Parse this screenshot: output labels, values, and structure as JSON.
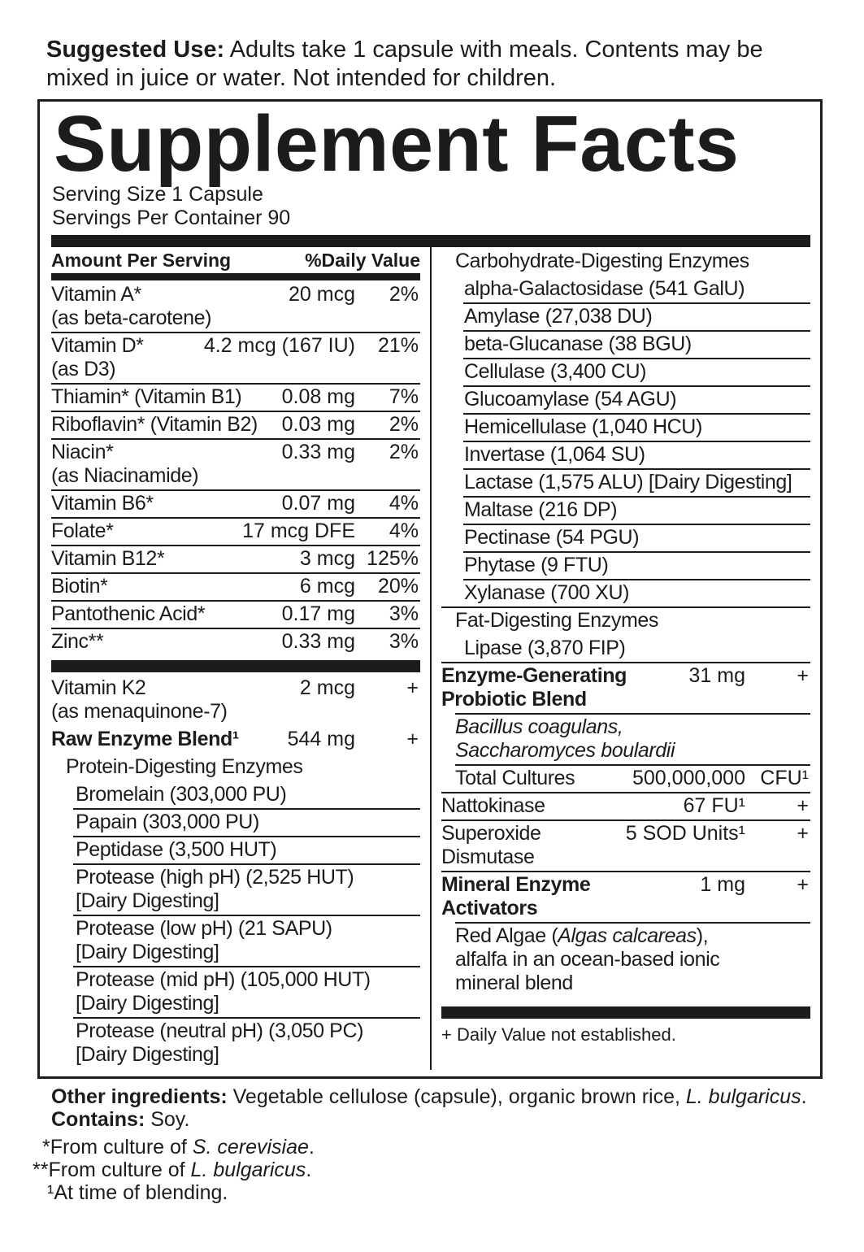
{
  "suggested_use": {
    "label": "Suggested Use:",
    "text": " Adults take 1 capsule with meals. Contents may be mixed in juice or water. Not intended for children."
  },
  "title": "Supplement Facts",
  "serving_size": "Serving Size 1 Capsule",
  "servings_per_container": "Servings Per Container 90",
  "header": {
    "amount": "Amount Per Serving",
    "dv": "%Daily Value"
  },
  "left_vitamins": [
    {
      "name": [
        "Vitamin A*",
        "(as beta-carotene)"
      ],
      "amount": "20 mcg",
      "dv": "2%",
      "line": "full"
    },
    {
      "name": [
        "Vitamin D*",
        "(as D3)"
      ],
      "amount": "4.2 mcg (167 IU)",
      "dv": "21%",
      "line": "full"
    },
    {
      "name": [
        "Thiamin* (Vitamin B1)"
      ],
      "amount": "0.08 mg",
      "dv": "7%",
      "line": "full"
    },
    {
      "name": [
        "Riboflavin* (Vitamin B2)"
      ],
      "amount": "0.03 mg",
      "dv": "2%",
      "line": "full"
    },
    {
      "name": [
        "Niacin*",
        "(as Niacinamide)"
      ],
      "amount": "0.33 mg",
      "dv": "2%",
      "line": "full"
    },
    {
      "name": [
        "Vitamin B6*"
      ],
      "amount": "0.07 mg",
      "dv": "4%",
      "line": "full"
    },
    {
      "name": [
        "Folate*"
      ],
      "amount": "17 mcg DFE",
      "dv": "4%",
      "line": "full"
    },
    {
      "name": [
        "Vitamin B12*"
      ],
      "amount": "3 mcg",
      "dv": "125%",
      "line": "full"
    },
    {
      "name": [
        "Biotin*"
      ],
      "amount": "6 mcg",
      "dv": "20%",
      "line": "full"
    },
    {
      "name": [
        "Pantothenic Acid*"
      ],
      "amount": "0.17 mg",
      "dv": "3%",
      "line": "full"
    },
    {
      "name": [
        "Zinc**"
      ],
      "amount": "0.33 mg",
      "dv": "3%",
      "line": "none"
    }
  ],
  "left_blends": [
    {
      "name": [
        "Vitamin K2",
        "(as menaquinone-7)"
      ],
      "amount": "2 mcg",
      "dv": "+",
      "line": "none"
    },
    {
      "name": [
        "Raw Enzyme Blend¹"
      ],
      "amount": "544 mg",
      "dv": "+",
      "line": "none",
      "bold": true
    },
    {
      "name": [
        "Protein-Digesting Enzymes"
      ],
      "indent": 18,
      "line": "none"
    },
    {
      "name": [
        "Bromelain (303,000 PU)"
      ],
      "indent": 30,
      "line": "ind",
      "lineIndent": 27
    },
    {
      "name": [
        "Papain (303,000 PU)"
      ],
      "indent": 30,
      "line": "ind",
      "lineIndent": 27
    },
    {
      "name": [
        "Peptidase (3,500 HUT)"
      ],
      "indent": 30,
      "line": "ind",
      "lineIndent": 27
    },
    {
      "name": [
        "Protease (high pH) (2,525 HUT)",
        "[Dairy Digesting]"
      ],
      "indent": 30,
      "line": "ind",
      "lineIndent": 27
    },
    {
      "name": [
        "Protease (low pH) (21 SAPU)",
        "[Dairy Digesting]"
      ],
      "indent": 30,
      "line": "ind",
      "lineIndent": 27
    },
    {
      "name": [
        "Protease (mid pH) (105,000 HUT)",
        "[Dairy Digesting]"
      ],
      "indent": 30,
      "line": "ind",
      "lineIndent": 27
    },
    {
      "name": [
        "Protease (neutral pH) (3,050 PC)",
        "[Dairy Digesting]"
      ],
      "indent": 30,
      "line": "none"
    }
  ],
  "right_rows": [
    {
      "name": [
        "Carbohydrate-Digesting Enzymes"
      ],
      "indent": 17,
      "line": "none"
    },
    {
      "name": [
        "alpha-Galactosidase (541 GalU)"
      ],
      "indent": 28,
      "line": "ind",
      "lineIndent": 27
    },
    {
      "name": [
        "Amylase (27,038 DU)"
      ],
      "indent": 28,
      "line": "ind",
      "lineIndent": 27
    },
    {
      "name": [
        "beta-Glucanase (38 BGU)"
      ],
      "indent": 28,
      "line": "ind",
      "lineIndent": 27
    },
    {
      "name": [
        "Cellulase (3,400 CU)"
      ],
      "indent": 28,
      "line": "ind",
      "lineIndent": 27
    },
    {
      "name": [
        "Glucoamylase (54 AGU)"
      ],
      "indent": 28,
      "line": "ind",
      "lineIndent": 27
    },
    {
      "name": [
        "Hemicellulase (1,040 HCU)"
      ],
      "indent": 28,
      "line": "ind",
      "lineIndent": 27
    },
    {
      "name": [
        "Invertase (1,064 SU)"
      ],
      "indent": 28,
      "line": "ind",
      "lineIndent": 27
    },
    {
      "name": [
        "Lactase (1,575 ALU) [Dairy Digesting]"
      ],
      "indent": 28,
      "line": "ind",
      "lineIndent": 27
    },
    {
      "name": [
        "Maltase (216 DP)"
      ],
      "indent": 28,
      "line": "ind",
      "lineIndent": 27
    },
    {
      "name": [
        "Pectinase (54 PGU)"
      ],
      "indent": 28,
      "line": "ind",
      "lineIndent": 27
    },
    {
      "name": [
        "Phytase (9 FTU)"
      ],
      "indent": 28,
      "line": "ind",
      "lineIndent": 27
    },
    {
      "name": [
        "Xylanase (700 XU)"
      ],
      "indent": 28,
      "line": "full"
    },
    {
      "name": [
        "Fat-Digesting Enzymes"
      ],
      "indent": 17,
      "line": "none"
    },
    {
      "name": [
        "Lipase (3,870 FIP)"
      ],
      "indent": 28,
      "line": "full"
    },
    {
      "name": [
        "Enzyme-Generating",
        "Probiotic Blend"
      ],
      "amount": "31 mg",
      "dv": "+",
      "bold": true,
      "line": "ind",
      "lineIndent": 17
    },
    {
      "name": [
        "Bacillus coagulans,",
        "Saccharomyces boulardii"
      ],
      "indent": 17,
      "italic": true,
      "line": "ind",
      "lineIndent": 17
    },
    {
      "name": [
        "Total Cultures"
      ],
      "indent": 17,
      "amount": "500,000,000",
      "dv": "CFU¹",
      "line": "full"
    },
    {
      "name": [
        "Nattokinase"
      ],
      "amount": "67 FU¹",
      "dv": "+",
      "line": "full"
    },
    {
      "name": [
        "Superoxide",
        "Dismutase"
      ],
      "amount": "5 SOD Units¹",
      "dv": "+",
      "line": "full"
    },
    {
      "name": [
        "Mineral Enzyme",
        "Activators"
      ],
      "amount": "1 mg",
      "dv": "+",
      "bold": true,
      "line": "ind",
      "lineIndent": 17
    },
    {
      "name": [
        [
          {
            "t": "Red Algae ("
          },
          {
            "t": "Algas calcareas",
            "i": true
          },
          {
            "t": "),"
          }
        ],
        "alfalfa in an ocean-based ionic",
        "mineral blend"
      ],
      "indent": 17,
      "line": "none"
    }
  ],
  "dv_note": "+ Daily Value not established.",
  "other_ingredients": {
    "label": "Other ingredients:",
    "text": " Vegetable cellulose (capsule), organic brown rice, ",
    "italic": "L. bulgaricus",
    "end": "."
  },
  "contains": {
    "label": "Contains:",
    "text": " Soy."
  },
  "footnotes": [
    {
      "mark": "*",
      "text": "From culture of ",
      "italic": "S. cerevisiae",
      "end": "."
    },
    {
      "mark": "**",
      "text": "From culture of ",
      "italic": "L. bulgaricus",
      "end": "."
    },
    {
      "mark": "¹",
      "text": "At time of blending.",
      "italic": "",
      "end": ""
    }
  ]
}
